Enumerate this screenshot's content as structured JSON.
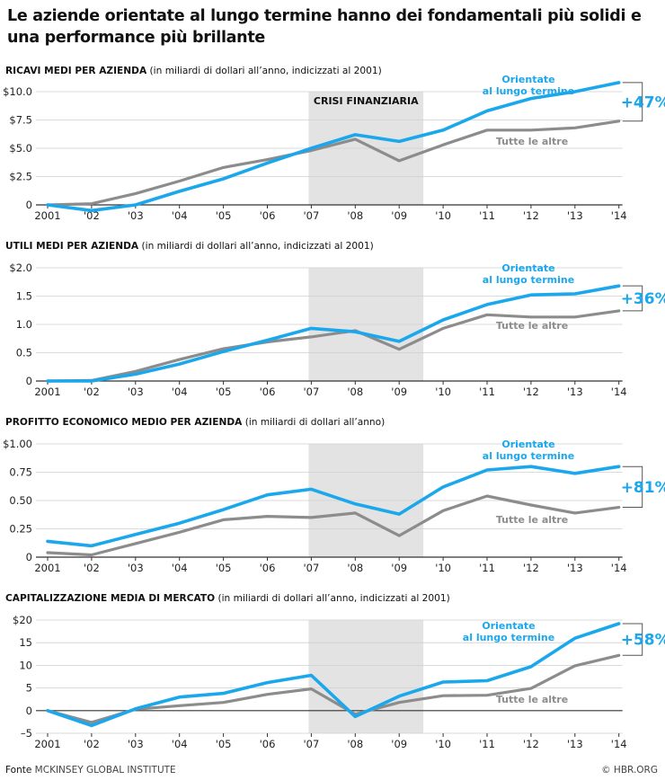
{
  "headline": "Le aziende orientate al lungo termine hanno dei fondamentali più solidi e una performance più brillante",
  "colors": {
    "long_term": "#1aa7ec",
    "others": "#8c8c8c",
    "crisis_band": "#e3e3e3",
    "grid": "#cfcfcf",
    "axis": "#333333",
    "bracket": "#555555"
  },
  "footer": {
    "source_label": "Fonte",
    "source_name": "MCKINSEY GLOBAL INSTITUTE",
    "credit": "© HBR.ORG"
  },
  "chart_data": [
    {
      "type": "line",
      "title": "RICAVI MEDI PER AZIENDA",
      "subtitle": "(in miliardi di dollari all’anno, indicizzati al 2001)",
      "x": [
        "2001",
        "'02",
        "'03",
        "'04",
        "'05",
        "'06",
        "'07",
        "'08",
        "'09",
        "'10",
        "'11",
        "'12",
        "'13",
        "'14"
      ],
      "ylim": [
        0,
        10
      ],
      "yticks": [
        0,
        2.5,
        5.0,
        7.5,
        10.0
      ],
      "ytick_labels": [
        "0",
        "$2.5",
        "$5.0",
        "$7.5",
        "$10.0"
      ],
      "grid": true,
      "shaded_region": {
        "from": "'07",
        "to": "'09",
        "label": "CRISI FINANZIARIA"
      },
      "series": [
        {
          "name": "Orientate al lungo termine",
          "values": [
            0,
            -0.5,
            0,
            1.2,
            2.3,
            3.7,
            5.0,
            6.2,
            5.6,
            6.6,
            8.3,
            9.4,
            10.0,
            10.8
          ]
        },
        {
          "name": "Tutte le altre",
          "values": [
            0,
            0.1,
            1.0,
            2.1,
            3.3,
            4.0,
            4.8,
            5.8,
            3.9,
            5.3,
            6.6,
            6.6,
            6.8,
            7.4
          ]
        }
      ],
      "series_labels": [
        "Orientate",
        "al lungo termine",
        "Tutte le altre"
      ],
      "annotation": "+47%"
    },
    {
      "type": "line",
      "title": "UTILI MEDI PER AZIENDA",
      "subtitle": "(in miliardi di dollari all’anno, indicizzati al 2001)",
      "x": [
        "2001",
        "'02",
        "'03",
        "'04",
        "'05",
        "'06",
        "'07",
        "'08",
        "'09",
        "'10",
        "'11",
        "'12",
        "'13",
        "'14"
      ],
      "ylim": [
        0,
        2.0
      ],
      "yticks": [
        0,
        0.5,
        1.0,
        1.5,
        2.0
      ],
      "ytick_labels": [
        "0",
        "0.5",
        "1.0",
        "1.5",
        "$2.0"
      ],
      "grid": true,
      "shaded_region": {
        "from": "'07",
        "to": "'09"
      },
      "series": [
        {
          "name": "Orientate al lungo termine",
          "values": [
            0,
            0,
            0.12,
            0.3,
            0.52,
            0.72,
            0.93,
            0.87,
            0.7,
            1.08,
            1.35,
            1.52,
            1.54,
            1.68
          ]
        },
        {
          "name": "Tutte le altre",
          "values": [
            0,
            0.01,
            0.17,
            0.38,
            0.57,
            0.69,
            0.78,
            0.89,
            0.56,
            0.93,
            1.17,
            1.13,
            1.13,
            1.24
          ]
        }
      ],
      "series_labels": [
        "Orientate",
        "al lungo termine",
        "Tutte le altre"
      ],
      "annotation": "+36%"
    },
    {
      "type": "line",
      "title": "PROFITTO ECONOMICO MEDIO PER AZIENDA",
      "subtitle": "(in miliardi di dollari all’anno)",
      "x": [
        "2001",
        "'02",
        "'03",
        "'04",
        "'05",
        "'06",
        "'07",
        "'08",
        "'09",
        "'10",
        "'11",
        "'12",
        "'13",
        "'14"
      ],
      "ylim": [
        0,
        1.0
      ],
      "yticks": [
        0,
        0.25,
        0.5,
        0.75,
        1.0
      ],
      "ytick_labels": [
        "0",
        "0.25",
        "0.50",
        "0.75",
        "$1.00"
      ],
      "grid": true,
      "shaded_region": {
        "from": "'07",
        "to": "'09"
      },
      "series": [
        {
          "name": "Orientate al lungo termine",
          "values": [
            0.14,
            0.1,
            0.2,
            0.3,
            0.42,
            0.55,
            0.6,
            0.47,
            0.38,
            0.62,
            0.77,
            0.8,
            0.74,
            0.8
          ]
        },
        {
          "name": "Tutte le altre",
          "values": [
            0.04,
            0.02,
            0.12,
            0.22,
            0.33,
            0.36,
            0.35,
            0.39,
            0.19,
            0.41,
            0.54,
            0.46,
            0.39,
            0.44
          ]
        }
      ],
      "series_labels": [
        "Orientate",
        "al lungo termine",
        "Tutte le altre"
      ],
      "annotation": "+81%"
    },
    {
      "type": "line",
      "title": "CAPITALIZZAZIONE MEDIA DI MERCATO",
      "subtitle": "(in miliardi di dollari all’anno, indicizzati al 2001)",
      "x": [
        "2001",
        "'02",
        "'03",
        "'04",
        "'05",
        "'06",
        "'07",
        "'08",
        "'09",
        "'10",
        "'11",
        "'12",
        "'13",
        "'14"
      ],
      "ylim": [
        -5,
        20
      ],
      "yticks": [
        -5,
        0,
        5,
        10,
        15,
        20
      ],
      "ytick_labels": [
        "–5",
        "0",
        "5",
        "10",
        "15",
        "$20"
      ],
      "grid": true,
      "shaded_region": {
        "from": "'07",
        "to": "'09"
      },
      "series": [
        {
          "name": "Orientate al lungo termine",
          "values": [
            0,
            -3.3,
            0.4,
            3.0,
            3.8,
            6.2,
            7.8,
            -1.3,
            3.2,
            6.3,
            6.6,
            9.7,
            16.0,
            19.2
          ]
        },
        {
          "name": "Tutte le altre",
          "values": [
            0,
            -2.6,
            0.3,
            1.1,
            1.8,
            3.6,
            4.8,
            -0.8,
            1.8,
            3.3,
            3.4,
            4.9,
            9.9,
            12.2
          ]
        }
      ],
      "series_labels": [
        "Orientate",
        "al lungo termine",
        "Tutte le altre"
      ],
      "annotation": "+58%"
    }
  ]
}
